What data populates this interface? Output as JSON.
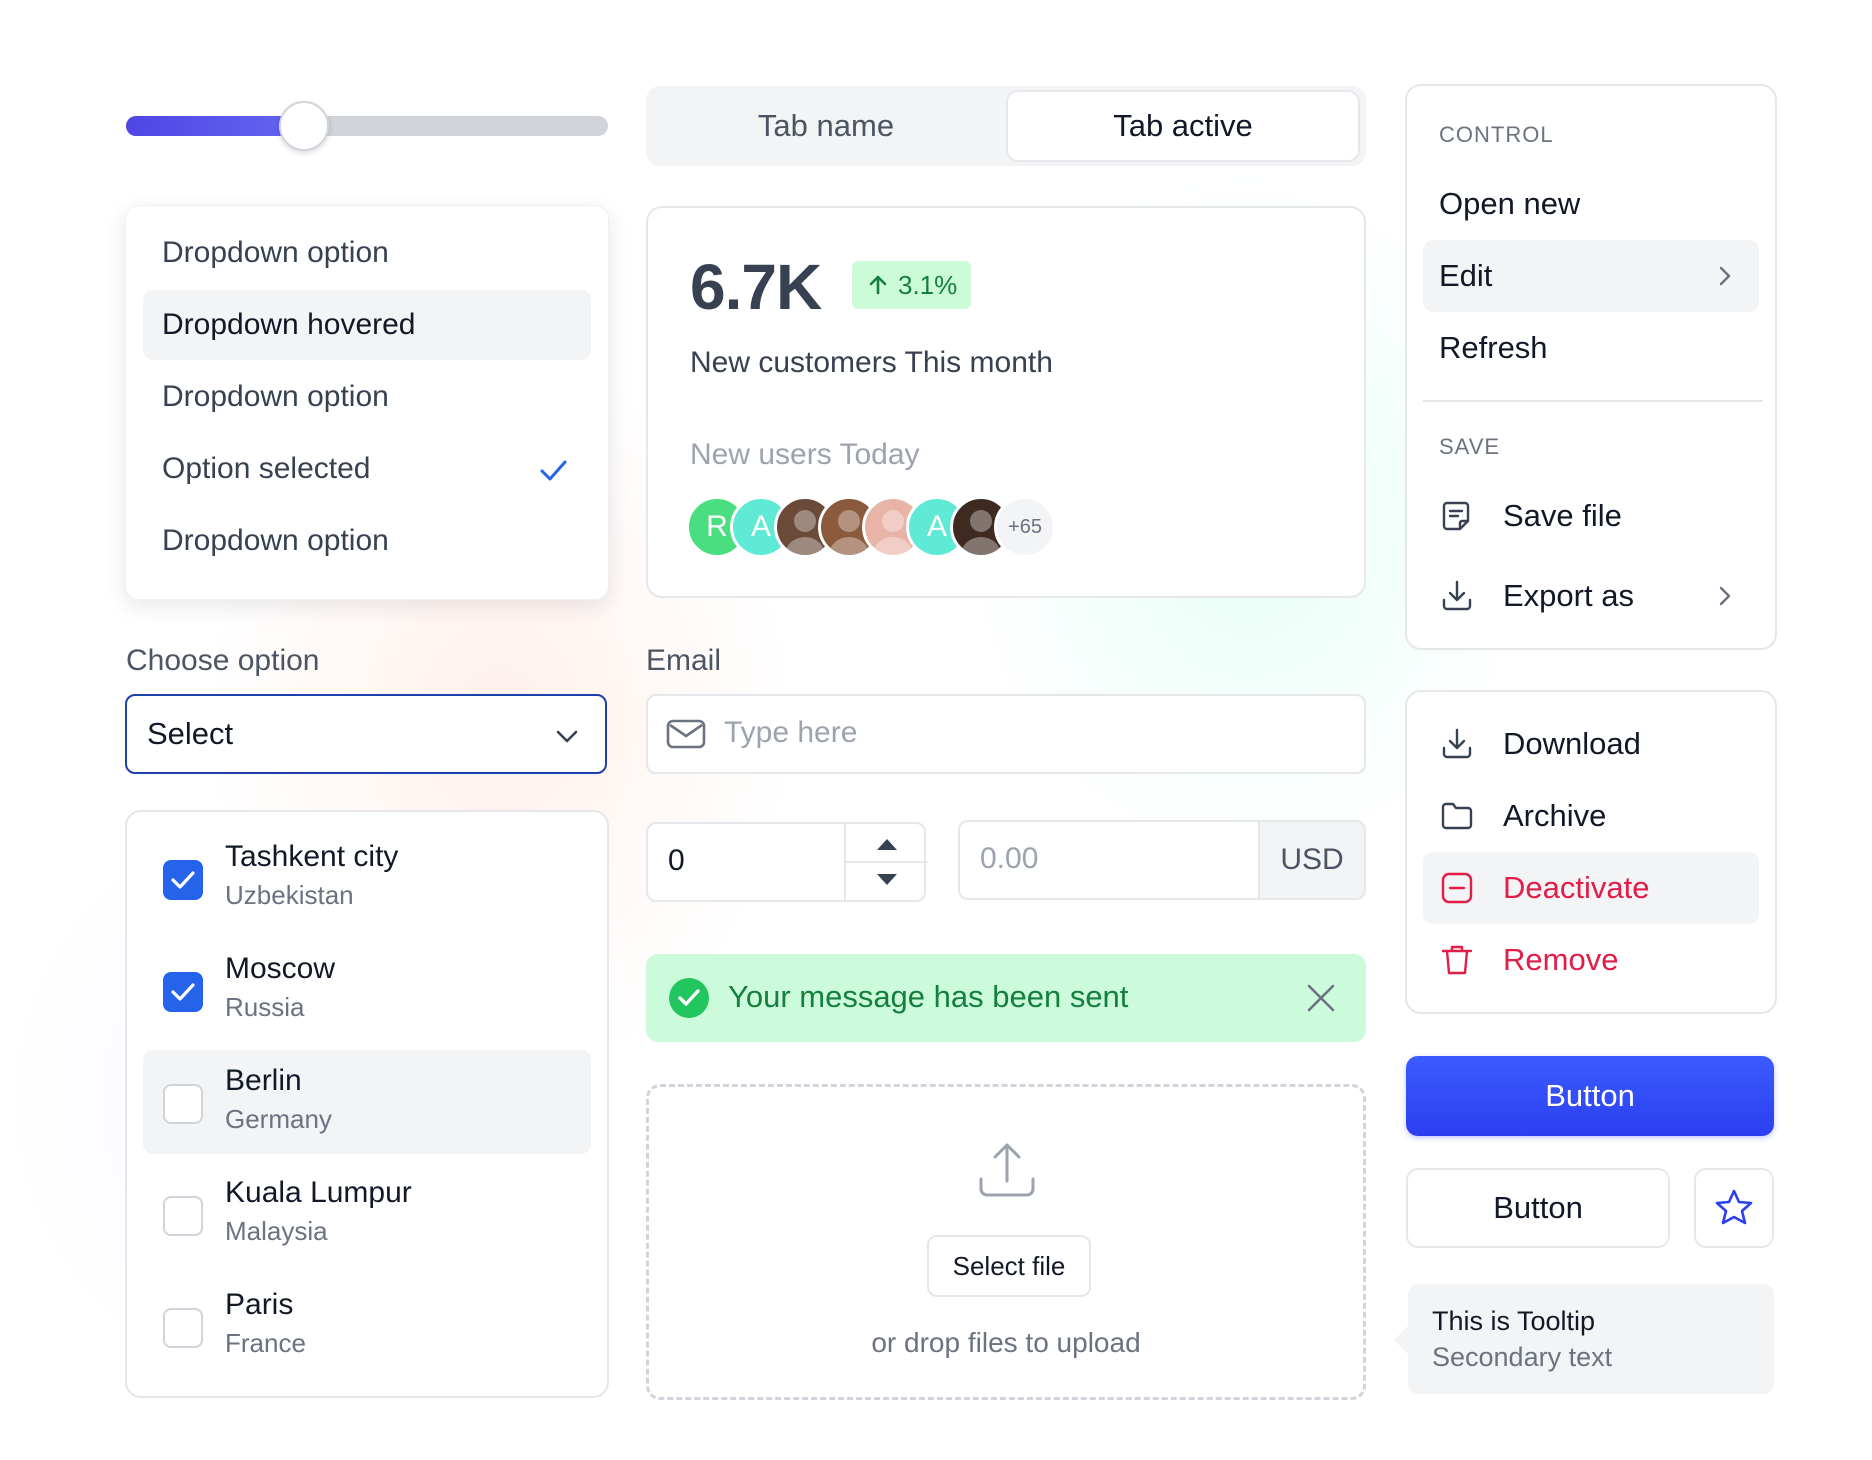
{
  "slider": {
    "value": 0.37
  },
  "dropdown": {
    "items": [
      {
        "label": "Dropdown option"
      },
      {
        "label": "Dropdown hovered"
      },
      {
        "label": "Dropdown option"
      },
      {
        "label": "Option selected"
      },
      {
        "label": "Dropdown option"
      }
    ]
  },
  "tabs": [
    {
      "label": "Tab name"
    },
    {
      "label": "Tab active"
    }
  ],
  "stats": {
    "value": "6.7K",
    "change": "3.1%",
    "label": "New customers This month",
    "sub_label": "New users Today",
    "avatars": [
      {
        "initial": "R",
        "color": "#4ade80"
      },
      {
        "initial": "A",
        "color": "#5eead4"
      },
      {
        "initial": "",
        "color": "#6b4a3a"
      },
      {
        "initial": "",
        "color": "#8b5a3c"
      },
      {
        "initial": "",
        "color": "#e8b4a8"
      },
      {
        "initial": "A",
        "color": "#5eead4"
      },
      {
        "initial": "",
        "color": "#3f2a22"
      }
    ],
    "more": "+65"
  },
  "control_menu": {
    "section1_title": "CONTROL",
    "open_new": "Open new",
    "edit": "Edit",
    "refresh": "Refresh",
    "section2_title": "SAVE",
    "save_file": "Save file",
    "export_as": "Export as"
  },
  "actions_menu": {
    "download": "Download",
    "archive": "Archive",
    "deactivate": "Deactivate",
    "remove": "Remove"
  },
  "buttons": {
    "primary": "Button",
    "secondary": "Button"
  },
  "tooltip": {
    "title": "This is Tooltip",
    "secondary": "Secondary text"
  },
  "choose": {
    "label": "Choose option",
    "value": "Select"
  },
  "email": {
    "label": "Email",
    "placeholder": "Type here"
  },
  "cities": [
    {
      "city": "Tashkent city",
      "country": "Uzbekistan",
      "checked": true
    },
    {
      "city": "Moscow",
      "country": "Russia",
      "checked": true
    },
    {
      "city": "Berlin",
      "country": "Germany",
      "checked": false
    },
    {
      "city": "Kuala Lumpur",
      "country": "Malaysia",
      "checked": false
    },
    {
      "city": "Paris",
      "country": "France",
      "checked": false
    }
  ],
  "stepper": {
    "value": "0"
  },
  "currency": {
    "placeholder": "0.00",
    "unit": "USD"
  },
  "alert": {
    "message": "Your message has been sent"
  },
  "upload": {
    "button": "Select file",
    "hint": "or drop files to upload"
  },
  "colors": {
    "accent": "#2b3ff0",
    "success": "#15803d",
    "danger": "#e11d48"
  }
}
